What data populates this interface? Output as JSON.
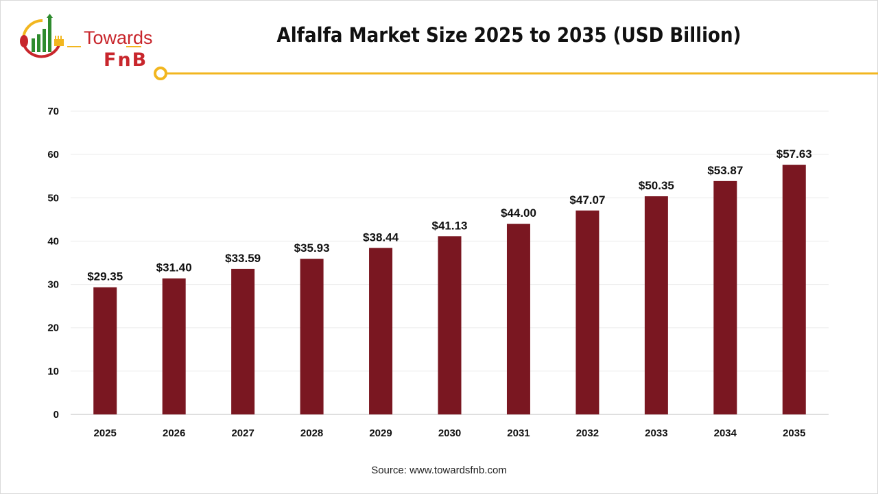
{
  "logo": {
    "line1": "Towards",
    "line2": "FnB"
  },
  "colors": {
    "bar": "#7a1721",
    "accent": "#f2b61f",
    "brand_red": "#c8262c",
    "brand_green": "#2e8b2e"
  },
  "source": "Source: www.towardsfnb.com",
  "chart_data": {
    "type": "bar",
    "title": "Alfalfa Market Size 2025 to 2035 (USD Billion)",
    "xlabel": "",
    "ylabel": "",
    "ylim": [
      0,
      70
    ],
    "yticks": [
      0,
      10,
      20,
      30,
      40,
      50,
      60,
      70
    ],
    "grid": true,
    "categories": [
      "2025",
      "2026",
      "2027",
      "2028",
      "2029",
      "2030",
      "2031",
      "2032",
      "2033",
      "2034",
      "2035"
    ],
    "values": [
      29.35,
      31.4,
      33.59,
      35.93,
      38.44,
      41.13,
      44.0,
      47.07,
      50.35,
      53.87,
      57.63
    ],
    "data_labels": [
      "$29.35",
      "$31.40",
      "$33.59",
      "$35.93",
      "$38.44",
      "$41.13",
      "$44.00",
      "$47.07",
      "$50.35",
      "$53.87",
      "$57.63"
    ]
  }
}
